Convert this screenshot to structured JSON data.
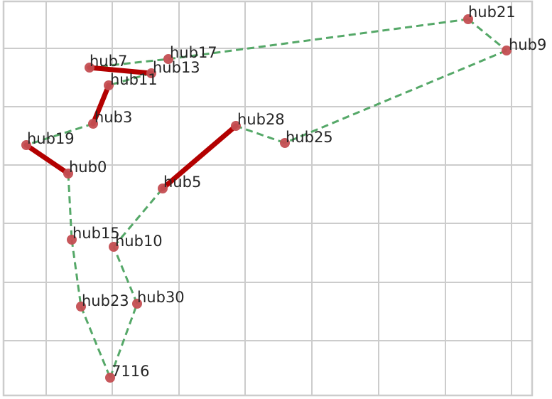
{
  "colors": {
    "background": "#ffffff",
    "grid": "#cccccc",
    "frame": "#cccccc",
    "route": "#55a868",
    "highlight": "#b30000",
    "node": "#c44e52",
    "label": "#262626"
  },
  "nodes": [
    {
      "id": "hub21",
      "label": "hub21"
    },
    {
      "id": "hub9",
      "label": "hub9"
    },
    {
      "id": "hub17",
      "label": "hub17"
    },
    {
      "id": "hub7",
      "label": "hub7"
    },
    {
      "id": "hub13",
      "label": "hub13"
    },
    {
      "id": "hub11",
      "label": "hub11"
    },
    {
      "id": "hub3",
      "label": "hub3"
    },
    {
      "id": "hub19",
      "label": "hub19"
    },
    {
      "id": "hub0",
      "label": "hub0"
    },
    {
      "id": "hub28",
      "label": "hub28"
    },
    {
      "id": "hub25",
      "label": "hub25"
    },
    {
      "id": "hub5",
      "label": "hub5"
    },
    {
      "id": "hub15",
      "label": "hub15"
    },
    {
      "id": "hub10",
      "label": "hub10"
    },
    {
      "id": "hub23",
      "label": "hub23"
    },
    {
      "id": "hub30",
      "label": "hub30"
    },
    {
      "id": "7116",
      "label": "7116"
    }
  ],
  "edges": [
    {
      "from": "hub7",
      "to": "hub13",
      "style": "highlight"
    },
    {
      "from": "hub11",
      "to": "hub3",
      "style": "highlight"
    },
    {
      "from": "hub19",
      "to": "hub0",
      "style": "highlight"
    },
    {
      "from": "hub28",
      "to": "hub5",
      "style": "highlight"
    },
    {
      "from": "hub7",
      "to": "hub17",
      "style": "route"
    },
    {
      "from": "hub17",
      "to": "hub21",
      "style": "route"
    },
    {
      "from": "hub21",
      "to": "hub9",
      "style": "route"
    },
    {
      "from": "hub9",
      "to": "hub25",
      "style": "route"
    },
    {
      "from": "hub25",
      "to": "hub28",
      "style": "route"
    },
    {
      "from": "hub13",
      "to": "hub11",
      "style": "route"
    },
    {
      "from": "hub3",
      "to": "hub19",
      "style": "route"
    },
    {
      "from": "hub0",
      "to": "hub15",
      "style": "route"
    },
    {
      "from": "hub15",
      "to": "hub23",
      "style": "route"
    },
    {
      "from": "hub23",
      "to": "7116",
      "style": "route"
    },
    {
      "from": "7116",
      "to": "hub30",
      "style": "route"
    },
    {
      "from": "hub30",
      "to": "hub10",
      "style": "route"
    },
    {
      "from": "hub10",
      "to": "hub5",
      "style": "route"
    }
  ]
}
